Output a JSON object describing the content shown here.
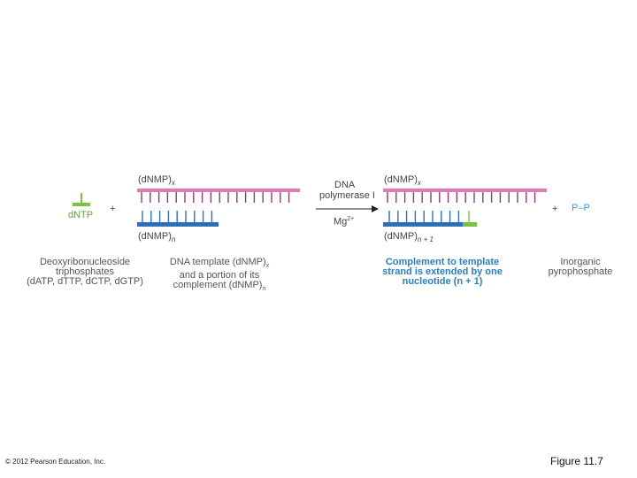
{
  "diagram": {
    "dntp_label": "dNTP",
    "plus": "+",
    "template_top_label": "(dNMP)",
    "template_top_sub": "x",
    "primer_bottom_label": "(dNMP)",
    "primer_bottom_sub": "n",
    "enzyme_line1": "DNA",
    "enzyme_line2": "polymerase I",
    "cofactor": "Mg",
    "cofactor_sup": "2+",
    "product_top_label": "(dNMP)",
    "product_top_sub": "x",
    "product_bottom_label": "(dNMP)",
    "product_bottom_sub": "n + 1",
    "ppi_label": "P–P",
    "colors": {
      "template_strand": "#e07ab0",
      "template_ticks": "#8b3b76",
      "primer_strand": "#2e6fb8",
      "primer_ticks": "#2e6fb8",
      "new_nucleotide": "#7cc242",
      "ppi": "#3a9bd5"
    }
  },
  "captions": {
    "dntp": [
      "Deoxyribonucleoside",
      "triphosphates",
      "(dATP, dTTP, dCTP, dGTP)"
    ],
    "template": [
      "DNA template (dNMP)",
      "and a portion of its",
      "complement (dNMP)"
    ],
    "template_subs": [
      "x",
      "n"
    ],
    "product": [
      "Complement to template",
      "strand is extended by one",
      "nucleotide (n + 1)"
    ],
    "ppi": [
      "Inorganic",
      "pyrophosphate"
    ]
  },
  "footer": {
    "copyright": "© 2012 Pearson Education, Inc.",
    "figure": "Figure 11.7"
  }
}
